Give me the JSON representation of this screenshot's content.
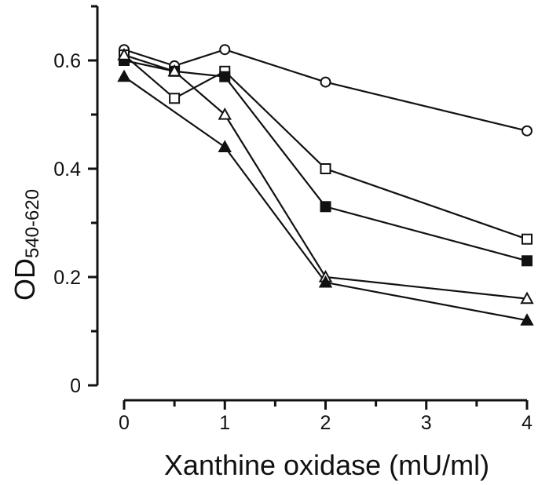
{
  "chart_data": {
    "type": "line",
    "xlabel": "Xanthine oxidase (mU/ml)",
    "ylabel_main": "OD",
    "ylabel_sub": "540-620",
    "xlim": [
      0,
      4
    ],
    "ylim": [
      0,
      0.7
    ],
    "xticks": [
      0,
      1,
      2,
      3,
      4
    ],
    "xtick_labels": [
      "0",
      "1",
      "2",
      "3",
      "4"
    ],
    "yticks": [
      0,
      0.1,
      0.2,
      0.3,
      0.4,
      0.5,
      0.6,
      0.7
    ],
    "ytick_labels": [
      "0",
      "",
      "0.2",
      "",
      "0.4",
      "",
      "0.6",
      ""
    ],
    "grid": false,
    "legend": "none",
    "series": [
      {
        "marker": "circle-open",
        "x": [
          0,
          0.5,
          1,
          2,
          4
        ],
        "y": [
          0.62,
          0.59,
          0.62,
          0.56,
          0.47
        ]
      },
      {
        "marker": "square-open",
        "x": [
          0,
          0.5,
          1,
          2,
          4
        ],
        "y": [
          0.61,
          0.53,
          0.58,
          0.4,
          0.27
        ]
      },
      {
        "marker": "square-filled",
        "x": [
          0,
          0.5,
          1,
          2,
          4
        ],
        "y": [
          0.6,
          0.58,
          0.57,
          0.33,
          0.23
        ]
      },
      {
        "marker": "triangle-open",
        "x": [
          0,
          0.5,
          1,
          2,
          4
        ],
        "y": [
          0.61,
          0.58,
          0.5,
          0.2,
          0.16
        ]
      },
      {
        "marker": "triangle-filled",
        "x": [
          0,
          1,
          2,
          4
        ],
        "y": [
          0.57,
          0.44,
          0.19,
          0.12
        ]
      }
    ]
  }
}
